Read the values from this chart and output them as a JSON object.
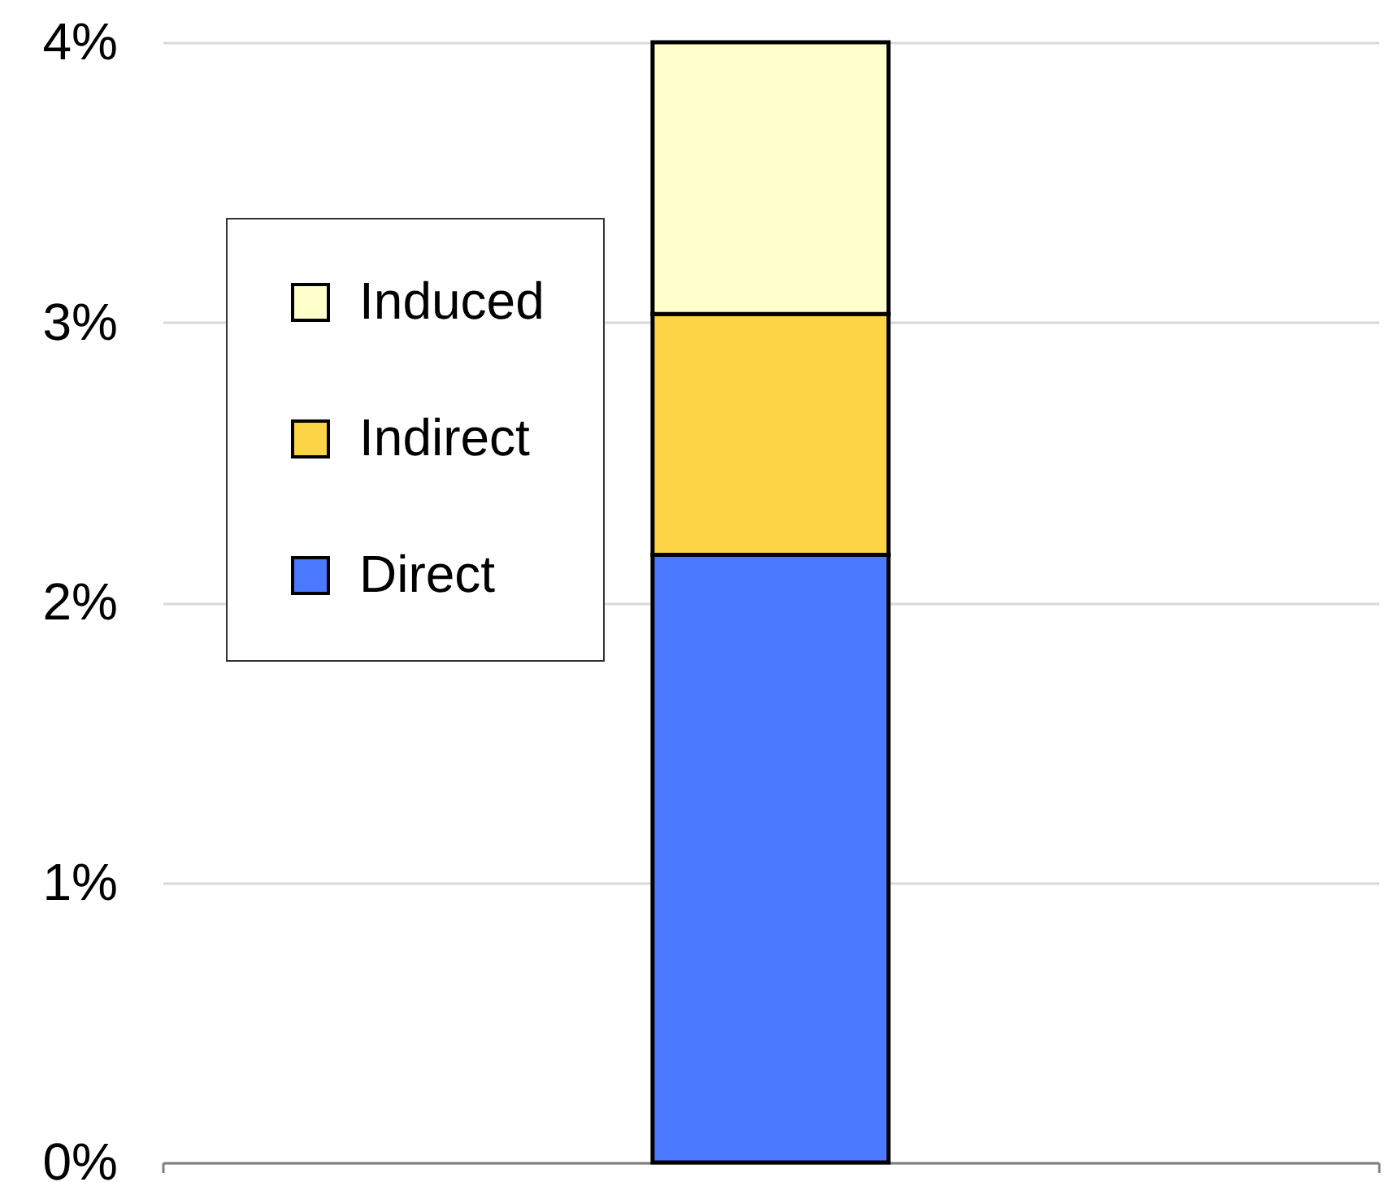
{
  "chart_data": {
    "type": "bar",
    "stacked": true,
    "categories": [
      null
    ],
    "series": [
      {
        "name": "Direct",
        "color": "#4a78ff",
        "values": [
          2.17
        ]
      },
      {
        "name": "Indirect",
        "color": "#fdd445",
        "values": [
          0.86
        ]
      },
      {
        "name": "Induced",
        "color": "#ffffcc",
        "values": [
          0.97
        ]
      }
    ],
    "ylim": [
      0,
      4
    ],
    "yticks": [
      {
        "value": 0,
        "label": "0%"
      },
      {
        "value": 1,
        "label": "1%"
      },
      {
        "value": 2,
        "label": "2%"
      },
      {
        "value": 3,
        "label": "3%"
      },
      {
        "value": 4,
        "label": "4%"
      }
    ],
    "grid": "y",
    "legend": "left"
  }
}
